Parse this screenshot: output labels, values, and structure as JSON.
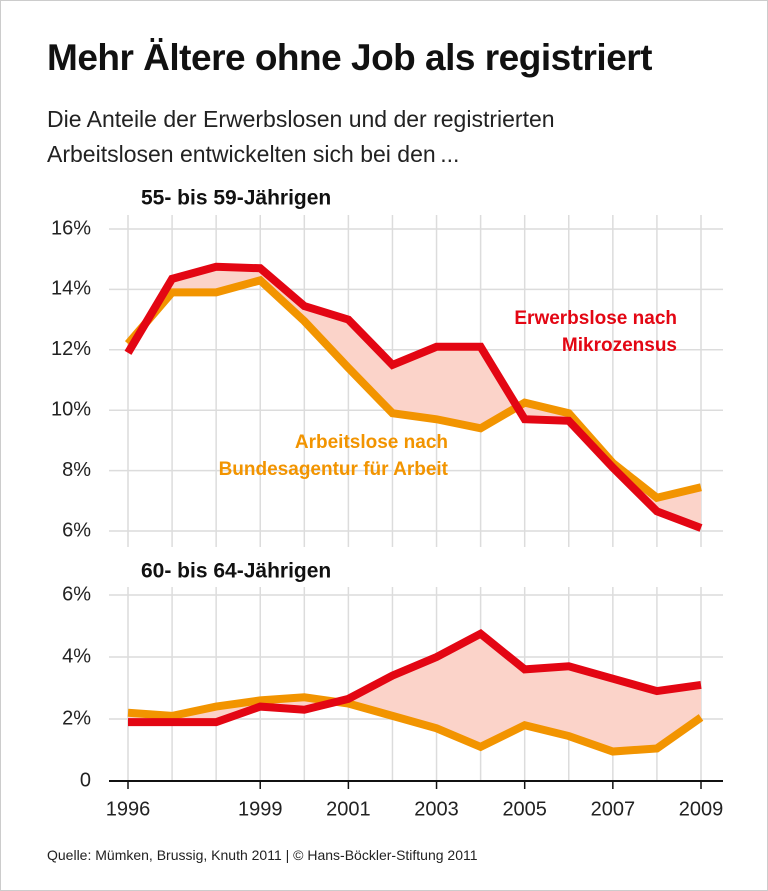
{
  "title": "Mehr Ältere ohne Job als registriert",
  "subtitle": "Die Anteile der Erwerbslosen und der registrierten Arbeitslosen entwickelten sich bei den ...",
  "source": "Quelle: Mümken, Brussig, Knuth 2011 | © Hans-Böckler-Stiftung 2011",
  "chart_data": [
    {
      "type": "line",
      "title": "55- bis 59-Jährigen",
      "x": [
        1996,
        1997,
        1998,
        1999,
        2000,
        2001,
        2002,
        2003,
        2004,
        2005,
        2006,
        2007,
        2008,
        2009
      ],
      "xlim": [
        1996,
        2009
      ],
      "ylim": [
        6,
        16
      ],
      "yticks": [
        {
          "value": 16,
          "label": "16%"
        },
        {
          "value": 14,
          "label": "14%"
        },
        {
          "value": 12,
          "label": "12%"
        },
        {
          "value": 10,
          "label": "10%"
        },
        {
          "value": 8,
          "label": "8%"
        },
        {
          "value": 6,
          "label": "6%"
        }
      ],
      "grid": true,
      "fill_between": "#fbd3c9",
      "series": [
        {
          "name": "Erwerbslose nach Mikrozensus",
          "color": "#e30613",
          "values": [
            11.9,
            14.35,
            14.75,
            14.7,
            13.45,
            13.0,
            11.5,
            12.1,
            12.1,
            9.7,
            9.65,
            8.1,
            6.65,
            6.1
          ]
        },
        {
          "name": "Arbeitslose nach Bundesagentur für Arbeit",
          "color": "#f29400",
          "values": [
            12.2,
            13.9,
            13.9,
            14.3,
            12.95,
            11.4,
            9.9,
            9.7,
            9.4,
            10.25,
            9.9,
            8.25,
            7.1,
            7.45
          ]
        }
      ]
    },
    {
      "type": "line",
      "title": "60- bis 64-Jährigen",
      "x": [
        1996,
        1997,
        1998,
        1999,
        2000,
        2001,
        2002,
        2003,
        2004,
        2005,
        2006,
        2007,
        2008,
        2009
      ],
      "xlim": [
        1996,
        2009
      ],
      "xticks": [
        1996,
        1999,
        2001,
        2003,
        2005,
        2007,
        2009
      ],
      "ylim": [
        0,
        6
      ],
      "yticks": [
        {
          "value": 6,
          "label": "6%"
        },
        {
          "value": 4,
          "label": "4%"
        },
        {
          "value": 2,
          "label": "2%"
        },
        0
      ],
      "grid": true,
      "fill_between": "#fbd3c9",
      "series": [
        {
          "color": "#e30613",
          "values": [
            1.9,
            1.9,
            1.9,
            2.4,
            2.3,
            2.65,
            3.4,
            4.0,
            4.75,
            3.6,
            3.7,
            3.3,
            2.9,
            3.1
          ]
        },
        {
          "color": "#f29400",
          "values": [
            2.2,
            2.1,
            2.4,
            2.6,
            2.7,
            2.5,
            2.1,
            1.7,
            1.1,
            1.8,
            1.45,
            0.95,
            1.05,
            2.05
          ]
        }
      ]
    }
  ]
}
